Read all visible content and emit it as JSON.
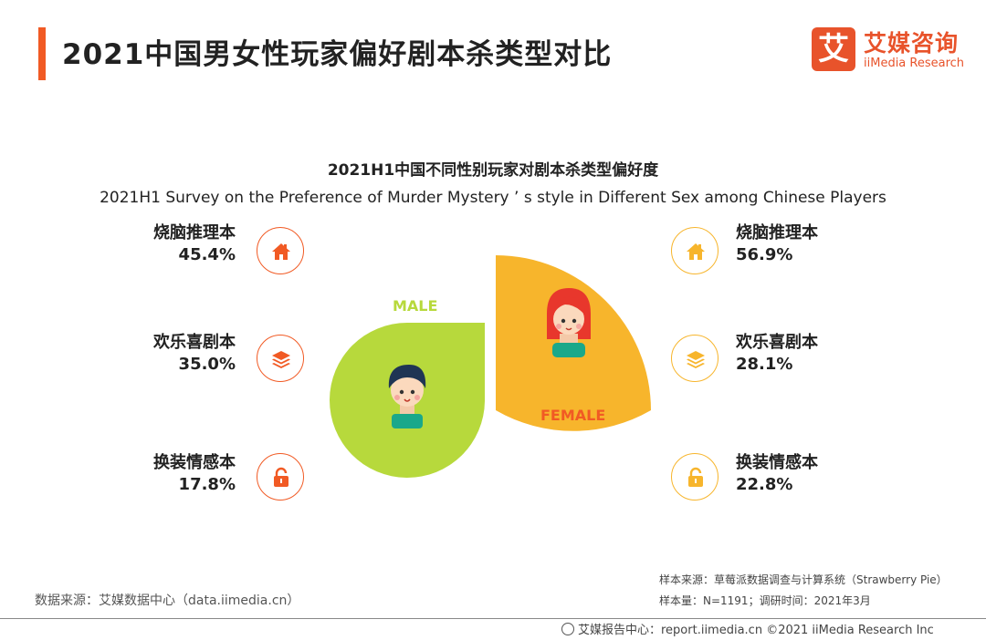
{
  "header": {
    "title": "2021中国男女性玩家偏好剧本杀类型对比",
    "logo_mark": "艾",
    "logo_cn": "艾媒咨询",
    "logo_en": "iiMedia Research"
  },
  "colors": {
    "accent": "#f15a24",
    "male": "#b7d93c",
    "female": "#f7b52c",
    "male_label": "#b7d93c",
    "female_label": "#f15a24"
  },
  "chart_data": {
    "type": "table",
    "title": "2021H1中国不同性别玩家对剧本杀类型偏好度",
    "subtitle": "2021H1 Survey on the Preference of Murder Mystery ’ s style in Different Sex among Chinese Players",
    "categories": [
      "烧脑推理本",
      "欢乐喜剧本",
      "换装情感本"
    ],
    "series": [
      {
        "name": "MALE",
        "values": [
          45.4,
          35.0,
          17.8
        ],
        "labels": [
          "45.4%",
          "35.0%",
          "17.8%"
        ]
      },
      {
        "name": "FEMALE",
        "values": [
          56.9,
          28.1,
          22.8
        ],
        "labels": [
          "56.9%",
          "28.1%",
          "22.8%"
        ]
      }
    ],
    "unit": "%",
    "icons": [
      "home-icon",
      "layers-icon",
      "unlock-icon"
    ]
  },
  "footer": {
    "source_left": "数据来源：艾媒数据中心（data.iimedia.cn）",
    "sample_source": "样本来源：草莓派数据调查与计算系统（Strawberry Pie）",
    "sample_size": "样本量：N=1191；调研时间：2021年3月",
    "credit": "艾媒报告中心：report.iimedia.cn  ©2021  iiMedia Research Inc"
  }
}
